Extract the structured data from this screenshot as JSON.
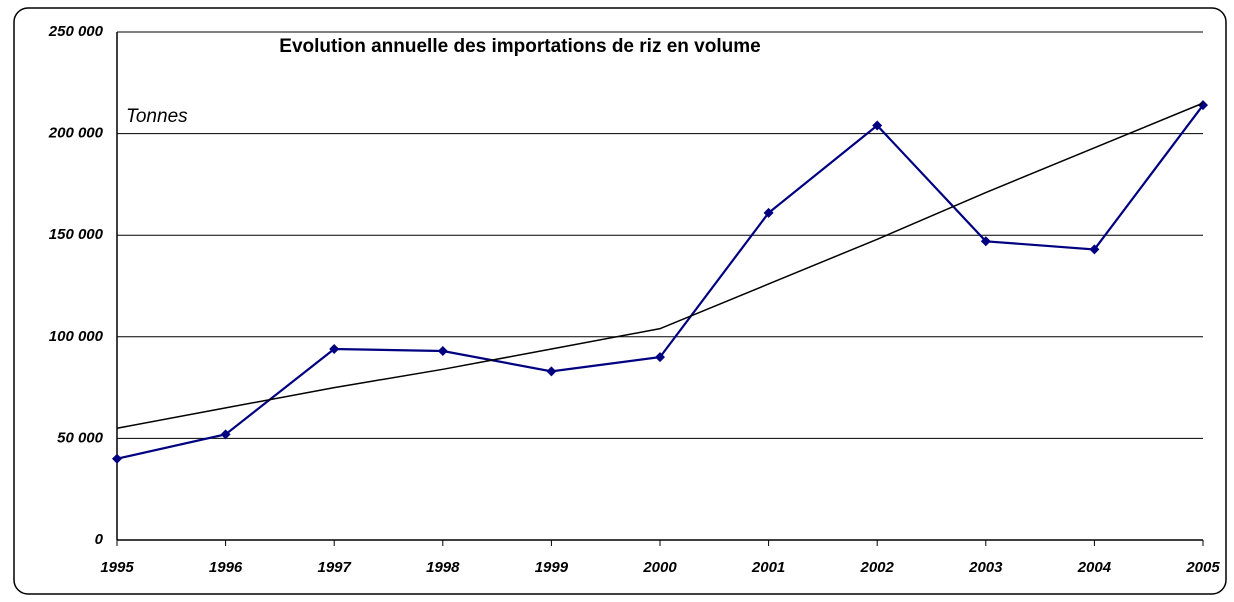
{
  "chart_data": {
    "type": "line",
    "title": "Evolution annuelle des importations de riz en volume",
    "y_unit_label": "Tonnes",
    "categories": [
      "1995",
      "1996",
      "1997",
      "1998",
      "1999",
      "2000",
      "2001",
      "2002",
      "2003",
      "2004",
      "2005"
    ],
    "series": [
      {
        "color": "#000080",
        "marker": true,
        "values": [
          40000,
          52000,
          94000,
          93000,
          83000,
          90000,
          161000,
          204000,
          147000,
          143000,
          214000
        ]
      },
      {
        "color": "#000000",
        "marker": false,
        "values": [
          55000,
          65000,
          75000,
          84000,
          94000,
          104000,
          126000,
          148000,
          171000,
          193000,
          215000
        ]
      }
    ],
    "ylim": [
      0,
      250000
    ],
    "yticks": [
      {
        "value": 0,
        "label": "0"
      },
      {
        "value": 50000,
        "label": "50 000"
      },
      {
        "value": 100000,
        "label": "100 000"
      },
      {
        "value": 150000,
        "label": "150 000"
      },
      {
        "value": 200000,
        "label": "200 000"
      },
      {
        "value": 250000,
        "label": "250 000"
      }
    ],
    "grid": true
  }
}
